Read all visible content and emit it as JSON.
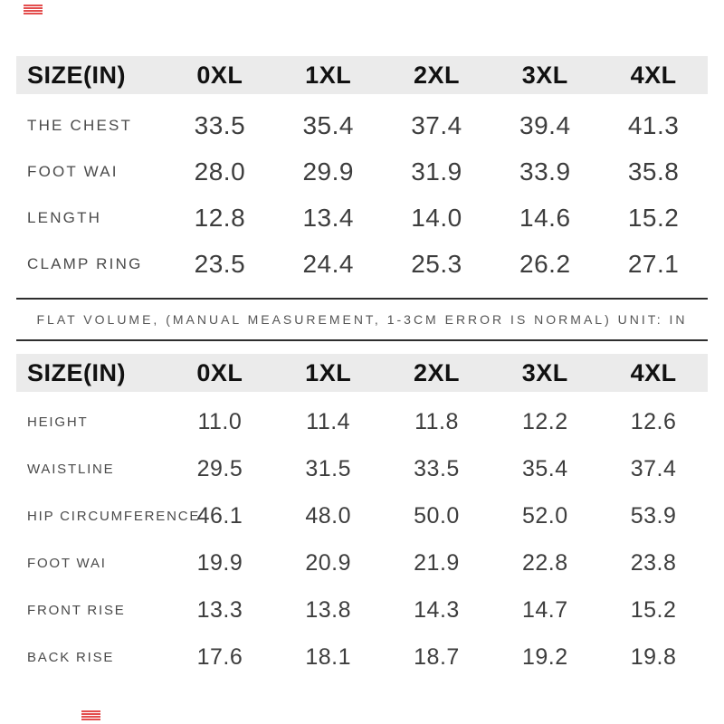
{
  "colors": {
    "header_bg": "#ebebeb",
    "header_text": "#111111",
    "label_text": "#4a4a4a",
    "value_text": "#3d3d3d",
    "note_text": "#555555",
    "rule": "#2e2e2e",
    "watermark_red": "#e03a3a"
  },
  "table1": {
    "header": {
      "label": "SIZE(IN)",
      "sizes": [
        "0XL",
        "1XL",
        "2XL",
        "3XL",
        "4XL"
      ]
    },
    "rows": [
      {
        "label": "THE CHEST",
        "values": [
          "33.5",
          "35.4",
          "37.4",
          "39.4",
          "41.3"
        ]
      },
      {
        "label": "FOOT WAI",
        "values": [
          "28.0",
          "29.9",
          "31.9",
          "33.9",
          "35.8"
        ]
      },
      {
        "label": "LENGTH",
        "values": [
          "12.8",
          "13.4",
          "14.0",
          "14.6",
          "15.2"
        ]
      },
      {
        "label": "CLAMP RING",
        "values": [
          "23.5",
          "24.4",
          "25.3",
          "26.2",
          "27.1"
        ]
      }
    ]
  },
  "note": {
    "text": "FLAT VOLUME, (MANUAL MEASUREMENT, 1-3CM ERROR IS NORMAL) UNIT: IN"
  },
  "table2": {
    "header": {
      "label": "SIZE(IN)",
      "sizes": [
        "0XL",
        "1XL",
        "2XL",
        "3XL",
        "4XL"
      ]
    },
    "rows": [
      {
        "label": "HEIGHT",
        "values": [
          "11.0",
          "11.4",
          "11.8",
          "12.2",
          "12.6"
        ]
      },
      {
        "label": "WAISTLINE",
        "values": [
          "29.5",
          "31.5",
          "33.5",
          "35.4",
          "37.4"
        ]
      },
      {
        "label": "HIP CIRCUMFERENCE",
        "values": [
          "46.1",
          "48.0",
          "50.0",
          "52.0",
          "53.9"
        ]
      },
      {
        "label": "FOOT WAI",
        "values": [
          "19.9",
          "20.9",
          "21.9",
          "22.8",
          "23.8"
        ]
      },
      {
        "label": "FRONT RISE",
        "values": [
          "13.3",
          "13.8",
          "14.3",
          "14.7",
          "15.2"
        ]
      },
      {
        "label": "BACK RISE",
        "values": [
          "17.6",
          "18.1",
          "18.7",
          "19.2",
          "19.8"
        ]
      }
    ]
  }
}
